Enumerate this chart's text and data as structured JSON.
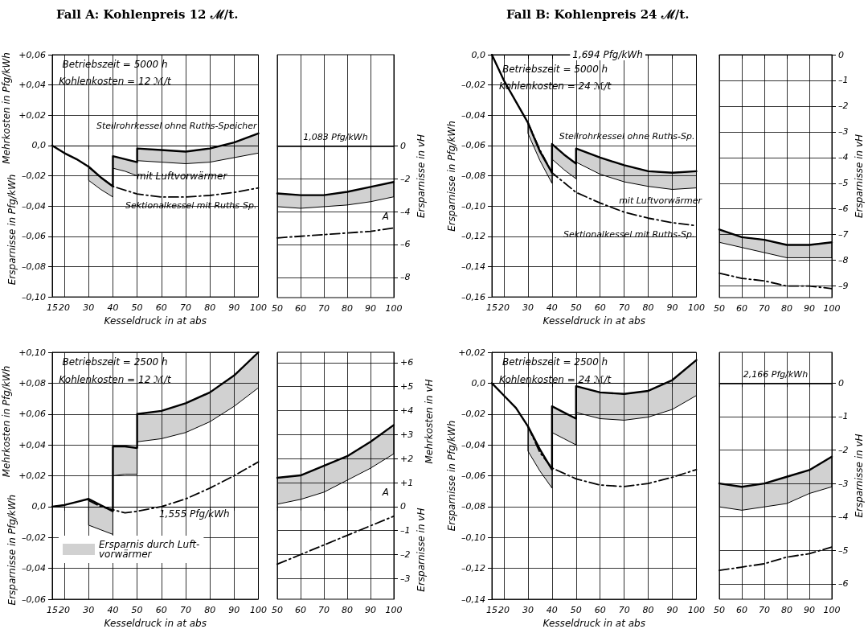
{
  "chart_data": [
    {
      "type": "line",
      "title": "Fall A: Kohlenpreis 12 ℳ/t.",
      "xlabel": "Kesseldruck in at abs",
      "ylabel": "Ersparnisse in Pfg/kWh",
      "annotations": [
        "Betriebszeit = 5000 h",
        "Kohlenkosten = 12 ℳ/t",
        "Mehrkosten in Pfg/kWh",
        "mit Luftvorwärmer"
      ],
      "xlim": [
        15,
        100
      ],
      "xticks": [
        15,
        20,
        30,
        40,
        50,
        60,
        70,
        80,
        90,
        100
      ],
      "ylim": [
        -0.1,
        0.06
      ],
      "yticks": [
        {
          "value": 0.06,
          "label": "+0,06"
        },
        {
          "value": 0.04,
          "label": "+0,04"
        },
        {
          "value": 0.02,
          "label": "+0,02"
        },
        {
          "value": 0,
          "label": "0,0"
        },
        {
          "value": -0.02,
          "label": "–0,02"
        },
        {
          "value": -0.04,
          "label": "–0,04"
        },
        {
          "value": -0.06,
          "label": "–0,06"
        },
        {
          "value": -0.08,
          "label": "–0,08"
        },
        {
          "value": -0.1,
          "label": "–0,10"
        }
      ],
      "grid": true,
      "series": [
        {
          "name": "Steilrohrkessel ohne Ruths-Speicher",
          "color": "#000000",
          "x": [
            15,
            20,
            25,
            30,
            30,
            35,
            40,
            40,
            45,
            50,
            50,
            60,
            70,
            80,
            90,
            100
          ],
          "values": [
            0,
            -0.005,
            -0.009,
            -0.014,
            -0.014,
            -0.021,
            -0.027,
            -0.007,
            -0.009,
            -0.011,
            -0.002,
            -0.003,
            -0.004,
            -0.002,
            0.002,
            0.008
          ],
          "upper": [
            0,
            -0.005,
            -0.009,
            -0.014,
            -0.014,
            -0.021,
            -0.027,
            -0.007,
            -0.009,
            -0.011,
            -0.002,
            -0.003,
            -0.004,
            -0.002,
            0.002,
            0.008
          ],
          "lower": [
            0,
            -0.005,
            -0.009,
            -0.014,
            -0.023,
            -0.029,
            -0.034,
            -0.015,
            -0.017,
            -0.02,
            -0.01,
            -0.011,
            -0.012,
            -0.011,
            -0.008,
            -0.005
          ]
        },
        {
          "name": "Sektionalkessel mit Ruths-Sp.",
          "color": "#000000",
          "line_style": "dashed",
          "x": [
            30,
            35,
            40,
            50,
            60,
            70,
            80,
            90,
            100
          ],
          "values": [
            -0.014,
            -0.021,
            -0.027,
            -0.032,
            -0.034,
            -0.034,
            -0.033,
            -0.031,
            -0.028
          ]
        }
      ]
    },
    {
      "type": "line",
      "y2label": "Ersparnisse in vH",
      "annotations": [
        "A"
      ],
      "ref_lines": [
        {
          "axis": "y2",
          "value": 0,
          "label": "1,083 Pfg/kWh"
        }
      ],
      "x": [
        50,
        60,
        70,
        80,
        90,
        100
      ],
      "xlim": [
        50,
        100
      ],
      "xticks": [
        50,
        60,
        70,
        80,
        90,
        100
      ],
      "y2lim": [
        -9.23,
        5.54
      ],
      "y2ticks": [
        {
          "value": 0,
          "label": "0"
        },
        {
          "value": -2,
          "label": "–2"
        },
        {
          "value": -4,
          "label": "–4"
        },
        {
          "value": -6,
          "label": "–6"
        },
        {
          "value": -8,
          "label": "–8"
        }
      ],
      "grid": true,
      "series": [
        {
          "color": "#000000",
          "axis": "y2",
          "values": [
            -2.9,
            -3.0,
            -3.0,
            -2.8,
            -2.5,
            -2.2
          ],
          "upper": [
            -2.9,
            -3.0,
            -3.0,
            -2.8,
            -2.5,
            -2.2
          ],
          "lower": [
            -3.7,
            -3.8,
            -3.7,
            -3.6,
            -3.4,
            -3.1
          ]
        },
        {
          "color": "#000000",
          "axis": "y2",
          "line_style": "dashed",
          "values": [
            -5.6,
            -5.5,
            -5.4,
            -5.3,
            -5.2,
            -5.0
          ]
        }
      ]
    },
    {
      "type": "line",
      "title": "Fall B: Kohlenpreis 24 ℳ/t.",
      "xlabel": "Kesseldruck in at abs",
      "ylabel": "Ersparnisse in Pfg/kWh",
      "annotations": [
        "Betriebszeit = 5000 h",
        "Kohlenkosten = 24 ℳ/t",
        "1,694 Pfg/kWh",
        "mit Luftvorwärmer"
      ],
      "xlim": [
        15,
        100
      ],
      "xticks": [
        15,
        20,
        30,
        40,
        50,
        60,
        70,
        80,
        90,
        100
      ],
      "ylim": [
        -0.16,
        0
      ],
      "yticks": [
        {
          "value": 0,
          "label": "0,0"
        },
        {
          "value": -0.02,
          "label": "–0,02"
        },
        {
          "value": -0.04,
          "label": "–0,04"
        },
        {
          "value": -0.06,
          "label": "–0,06"
        },
        {
          "value": -0.08,
          "label": "–0,08"
        },
        {
          "value": -0.1,
          "label": "–0,10"
        },
        {
          "value": -0.12,
          "label": "–0,12"
        },
        {
          "value": -0.14,
          "label": "–0,14"
        },
        {
          "value": -0.16,
          "label": "–0,16"
        }
      ],
      "grid": true,
      "series": [
        {
          "name": "Steilrohrkessel ohne Ruths-Sp.",
          "color": "#000000",
          "x": [
            15,
            20,
            25,
            30,
            30,
            35,
            40,
            40,
            45,
            50,
            50,
            60,
            70,
            80,
            90,
            100
          ],
          "values": [
            0,
            -0.017,
            -0.031,
            -0.045,
            -0.045,
            -0.064,
            -0.078,
            -0.059,
            -0.066,
            -0.072,
            -0.062,
            -0.068,
            -0.073,
            -0.077,
            -0.078,
            -0.077
          ],
          "upper": [
            0,
            -0.017,
            -0.031,
            -0.045,
            -0.045,
            -0.064,
            -0.078,
            -0.059,
            -0.066,
            -0.072,
            -0.062,
            -0.068,
            -0.073,
            -0.077,
            -0.078,
            -0.077
          ],
          "lower": [
            0,
            -0.017,
            -0.031,
            -0.045,
            -0.052,
            -0.07,
            -0.085,
            -0.069,
            -0.076,
            -0.082,
            -0.071,
            -0.079,
            -0.084,
            -0.087,
            -0.089,
            -0.088
          ]
        },
        {
          "name": "Sektionalkessel mit Ruths-Sp.",
          "color": "#000000",
          "line_style": "dashed",
          "x": [
            30,
            35,
            40,
            50,
            60,
            70,
            80,
            90,
            100
          ],
          "values": [
            -0.045,
            -0.063,
            -0.078,
            -0.091,
            -0.098,
            -0.104,
            -0.108,
            -0.111,
            -0.113
          ]
        }
      ]
    },
    {
      "type": "line",
      "y2label": "Ersparnisse in vH",
      "x": [
        50,
        60,
        70,
        80,
        90,
        100
      ],
      "xlim": [
        50,
        100
      ],
      "xticks": [
        50,
        60,
        70,
        80,
        90,
        100
      ],
      "y2lim": [
        -9.45,
        0
      ],
      "y2ticks": [
        {
          "value": 0,
          "label": "0"
        },
        {
          "value": -1,
          "label": "–1"
        },
        {
          "value": -2,
          "label": "–2"
        },
        {
          "value": -3,
          "label": "–3"
        },
        {
          "value": -4,
          "label": "–4"
        },
        {
          "value": -5,
          "label": "–5"
        },
        {
          "value": -6,
          "label": "–6"
        },
        {
          "value": -7,
          "label": "–7"
        },
        {
          "value": -8,
          "label": "–8"
        },
        {
          "value": -9,
          "label": "–9"
        }
      ],
      "grid": true,
      "series": [
        {
          "color": "#000000",
          "axis": "y2",
          "values": [
            -6.8,
            -7.1,
            -7.2,
            -7.4,
            -7.4,
            -7.3
          ],
          "upper": [
            -6.8,
            -7.1,
            -7.2,
            -7.4,
            -7.4,
            -7.3
          ],
          "lower": [
            -7.3,
            -7.5,
            -7.7,
            -7.9,
            -7.9,
            -7.9
          ]
        },
        {
          "color": "#000000",
          "axis": "y2",
          "line_style": "dashed",
          "values": [
            -8.5,
            -8.7,
            -8.8,
            -9.0,
            -9.0,
            -9.1
          ]
        }
      ]
    },
    {
      "type": "line",
      "xlabel": "Kesseldruck in at abs",
      "ylabel": "Ersparnisse in Pfg/kWh",
      "annotations": [
        "Betriebszeit = 2500 h",
        "Kohlenkosten = 12 ℳ/t",
        "Mehrkosten in Pfg/kWh",
        "1,555 Pfg/kWh"
      ],
      "legend": "bottom left",
      "xlim": [
        15,
        100
      ],
      "xticks": [
        15,
        20,
        30,
        40,
        50,
        60,
        70,
        80,
        90,
        100
      ],
      "ylim": [
        -0.06,
        0.1
      ],
      "yticks": [
        {
          "value": 0.1,
          "label": "+0,10"
        },
        {
          "value": 0.08,
          "label": "+0,08"
        },
        {
          "value": 0.06,
          "label": "+0,06"
        },
        {
          "value": 0.04,
          "label": "+0,04"
        },
        {
          "value": 0.02,
          "label": "+0,02"
        },
        {
          "value": 0,
          "label": "0,0"
        },
        {
          "value": -0.02,
          "label": "–0,02"
        },
        {
          "value": -0.04,
          "label": "–0,04"
        },
        {
          "value": -0.06,
          "label": "–0,06"
        }
      ],
      "grid": true,
      "series": [
        {
          "name": "Ersparnis durch Luft-\nvorwärmer",
          "color": "#000000",
          "x": [
            15,
            20,
            25,
            30,
            30,
            35,
            40,
            40,
            45,
            50,
            50,
            60,
            70,
            80,
            90,
            100
          ],
          "values": [
            0,
            0.001,
            0.003,
            0.005,
            0.005,
            0.001,
            -0.003,
            0.039,
            0.039,
            0.038,
            0.06,
            0.062,
            0.067,
            0.074,
            0.085,
            0.1
          ],
          "upper": [
            0,
            0.001,
            0.003,
            0.005,
            0.005,
            0.001,
            -0.003,
            0.039,
            0.039,
            0.038,
            0.06,
            0.062,
            0.067,
            0.074,
            0.085,
            0.1
          ],
          "lower": [
            0,
            0.001,
            0.003,
            0.005,
            -0.012,
            -0.015,
            -0.018,
            0.02,
            0.021,
            0.021,
            0.042,
            0.044,
            0.048,
            0.055,
            0.065,
            0.077
          ]
        },
        {
          "color": "#000000",
          "line_style": "dashed",
          "x": [
            30,
            35,
            40,
            45,
            50,
            60,
            70,
            80,
            90,
            100
          ],
          "values": [
            0.004,
            0.0,
            -0.002,
            -0.004,
            -0.003,
            0.0,
            0.005,
            0.012,
            0.02,
            0.029
          ]
        }
      ]
    },
    {
      "type": "line",
      "y2label": "Ersparnisse in vH",
      "annotations": [
        "Mehrkosten in vH",
        "A"
      ],
      "x": [
        50,
        60,
        70,
        80,
        90,
        100
      ],
      "xlim": [
        50,
        100
      ],
      "xticks": [
        50,
        60,
        70,
        80,
        90,
        100
      ],
      "y2lim": [
        -3.86,
        6.43
      ],
      "y2ticks": [
        {
          "value": 6,
          "label": "+6"
        },
        {
          "value": 5,
          "label": "+5"
        },
        {
          "value": 4,
          "label": "+4"
        },
        {
          "value": 3,
          "label": "+3"
        },
        {
          "value": 2,
          "label": "+2"
        },
        {
          "value": 1,
          "label": "+1"
        },
        {
          "value": 0,
          "label": "0"
        },
        {
          "value": -1,
          "label": "–1"
        },
        {
          "value": -2,
          "label": "–2"
        },
        {
          "value": -3,
          "label": "–3"
        }
      ],
      "grid": true,
      "series": [
        {
          "color": "#000000",
          "axis": "y2",
          "values": [
            1.2,
            1.3,
            1.7,
            2.1,
            2.7,
            3.4
          ],
          "upper": [
            1.2,
            1.3,
            1.7,
            2.1,
            2.7,
            3.4
          ],
          "lower": [
            0.1,
            0.3,
            0.6,
            1.1,
            1.6,
            2.2
          ]
        },
        {
          "color": "#000000",
          "axis": "y2",
          "line_style": "dashed",
          "values": [
            -2.4,
            -2.0,
            -1.6,
            -1.2,
            -0.8,
            -0.4
          ]
        }
      ]
    },
    {
      "type": "line",
      "xlabel": "Kesseldruck in at abs",
      "ylabel": "Ersparnisse in Pfg/kWh",
      "annotations": [
        "Betriebszeit = 2500 h",
        "Kohlenkosten = 24 ℳ/t"
      ],
      "xlim": [
        15,
        100
      ],
      "xticks": [
        15,
        20,
        30,
        40,
        50,
        60,
        70,
        80,
        90,
        100
      ],
      "ylim": [
        -0.14,
        0.02
      ],
      "yticks": [
        {
          "value": 0.02,
          "label": "+0,02"
        },
        {
          "value": 0,
          "label": "0,0"
        },
        {
          "value": -0.02,
          "label": "–0,02"
        },
        {
          "value": -0.04,
          "label": "–0,04"
        },
        {
          "value": -0.06,
          "label": "–0,06"
        },
        {
          "value": -0.08,
          "label": "–0,08"
        },
        {
          "value": -0.1,
          "label": "–0,10"
        },
        {
          "value": -0.12,
          "label": "–0,12"
        },
        {
          "value": -0.14,
          "label": "–0,14"
        }
      ],
      "grid": true,
      "series": [
        {
          "color": "#000000",
          "x": [
            15,
            20,
            25,
            30,
            30,
            35,
            40,
            40,
            45,
            50,
            50,
            60,
            70,
            80,
            90,
            100
          ],
          "values": [
            0,
            -0.008,
            -0.016,
            -0.028,
            -0.028,
            -0.043,
            -0.056,
            -0.015,
            -0.019,
            -0.023,
            -0.002,
            -0.006,
            -0.007,
            -0.005,
            0.002,
            0.015
          ],
          "upper": [
            0,
            -0.008,
            -0.016,
            -0.028,
            -0.028,
            -0.043,
            -0.056,
            -0.015,
            -0.019,
            -0.023,
            -0.002,
            -0.006,
            -0.007,
            -0.005,
            0.002,
            0.015
          ],
          "lower": [
            0,
            -0.008,
            -0.016,
            -0.028,
            -0.044,
            -0.057,
            -0.068,
            -0.032,
            -0.036,
            -0.04,
            -0.019,
            -0.023,
            -0.024,
            -0.022,
            -0.017,
            -0.008
          ]
        },
        {
          "color": "#000000",
          "line_style": "dashed",
          "x": [
            30,
            35,
            40,
            50,
            60,
            70,
            80,
            90,
            100
          ],
          "values": [
            -0.028,
            -0.045,
            -0.055,
            -0.062,
            -0.066,
            -0.067,
            -0.065,
            -0.061,
            -0.056
          ]
        }
      ]
    },
    {
      "type": "line",
      "y2label": "Ersparnisse in vH",
      "ref_lines": [
        {
          "axis": "y2",
          "value": 0,
          "label": "2,166 Pfg/kWh"
        }
      ],
      "x": [
        50,
        60,
        70,
        80,
        90,
        100
      ],
      "xlim": [
        50,
        100
      ],
      "xticks": [
        50,
        60,
        70,
        80,
        90,
        100
      ],
      "y2lim": [
        -6.46,
        0.92
      ],
      "y2ticks": [
        {
          "value": 0,
          "label": "0"
        },
        {
          "value": -1,
          "label": "–1"
        },
        {
          "value": -2,
          "label": "–2"
        },
        {
          "value": -3,
          "label": "–3"
        },
        {
          "value": -4,
          "label": "–4"
        },
        {
          "value": -5,
          "label": "–5"
        },
        {
          "value": -6,
          "label": "–6"
        }
      ],
      "grid": true,
      "series": [
        {
          "color": "#000000",
          "axis": "y2",
          "values": [
            -3.0,
            -3.1,
            -3.0,
            -2.8,
            -2.6,
            -2.2
          ],
          "upper": [
            -3.0,
            -3.1,
            -3.0,
            -2.8,
            -2.6,
            -2.2
          ],
          "lower": [
            -3.7,
            -3.8,
            -3.7,
            -3.6,
            -3.3,
            -3.1
          ]
        },
        {
          "color": "#000000",
          "axis": "y2",
          "line_style": "dashed",
          "values": [
            -5.6,
            -5.5,
            -5.4,
            -5.2,
            -5.1,
            -4.9
          ]
        }
      ]
    }
  ]
}
